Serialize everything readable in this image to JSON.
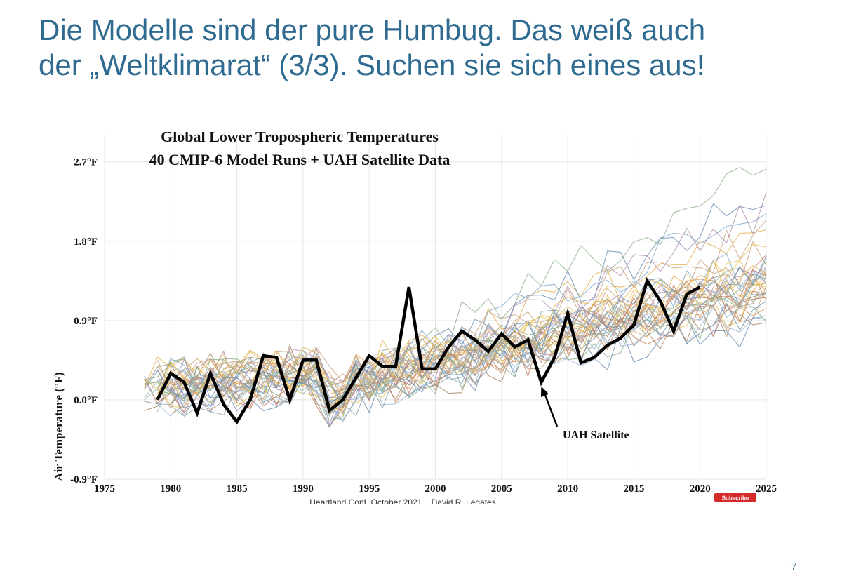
{
  "slide": {
    "title_line1": "Die Modelle sind der pure Humbug. Das weiß auch",
    "title_line2": "der „Weltklimarat“ (3/3). Suchen sie sich eines aus!",
    "page_number": "7",
    "title_color": "#2f6b91"
  },
  "chart_data": {
    "type": "line",
    "title": "Global Lower Tropospheric Temperatures",
    "subtitle": "40 CMIP-6 Model Runs + UAH Satellite Data",
    "ylabel": "Air Temperature (°F)",
    "xlabel": "",
    "xlim": [
      1975,
      2025
    ],
    "ylim": [
      -0.9,
      3.0
    ],
    "xticks": [
      "1975",
      "1980",
      "1985",
      "1990",
      "1995",
      "2000",
      "2005",
      "2010",
      "2015",
      "2020",
      "2025"
    ],
    "yticks": [
      "2.7°F",
      "1.8°F",
      "0.9°F",
      "0.0°F",
      "-0.9°F"
    ],
    "grid": true,
    "model_runs_count": 40,
    "model_run_colors": [
      "#e3b04b",
      "#6d8fb3",
      "#c9a27e",
      "#8fb08a",
      "#b38fb0",
      "#e8c55a",
      "#7fa9c9",
      "#a88a6a",
      "#d9a066",
      "#9bb7d4",
      "#c77c5a",
      "#88a0a8"
    ],
    "annotation": {
      "text": "UAH Satellite",
      "points_to_x": 2008
    },
    "credit": "Heartland Conf  October 2021    David R. Legates",
    "badge": "Subscribe",
    "series": [
      {
        "name": "UAH Satellite",
        "color": "#000000",
        "x": [
          1979,
          1980,
          1981,
          1982,
          1983,
          1984,
          1985,
          1986,
          1987,
          1988,
          1989,
          1990,
          1991,
          1992,
          1993,
          1994,
          1995,
          1996,
          1997,
          1998,
          1999,
          2000,
          2001,
          2002,
          2003,
          2004,
          2005,
          2006,
          2007,
          2008,
          2009,
          2010,
          2011,
          2012,
          2013,
          2014,
          2015,
          2016,
          2017,
          2018,
          2019,
          2020
        ],
        "values": [
          0.0,
          0.3,
          0.2,
          -0.15,
          0.3,
          -0.05,
          -0.25,
          0.0,
          0.5,
          0.48,
          0.0,
          0.45,
          0.45,
          -0.12,
          0.0,
          0.25,
          0.5,
          0.38,
          0.38,
          1.28,
          0.35,
          0.35,
          0.6,
          0.78,
          0.68,
          0.55,
          0.75,
          0.6,
          0.68,
          0.2,
          0.48,
          0.98,
          0.42,
          0.48,
          0.62,
          0.7,
          0.85,
          1.35,
          1.12,
          0.78,
          1.2,
          1.28
        ]
      }
    ]
  }
}
